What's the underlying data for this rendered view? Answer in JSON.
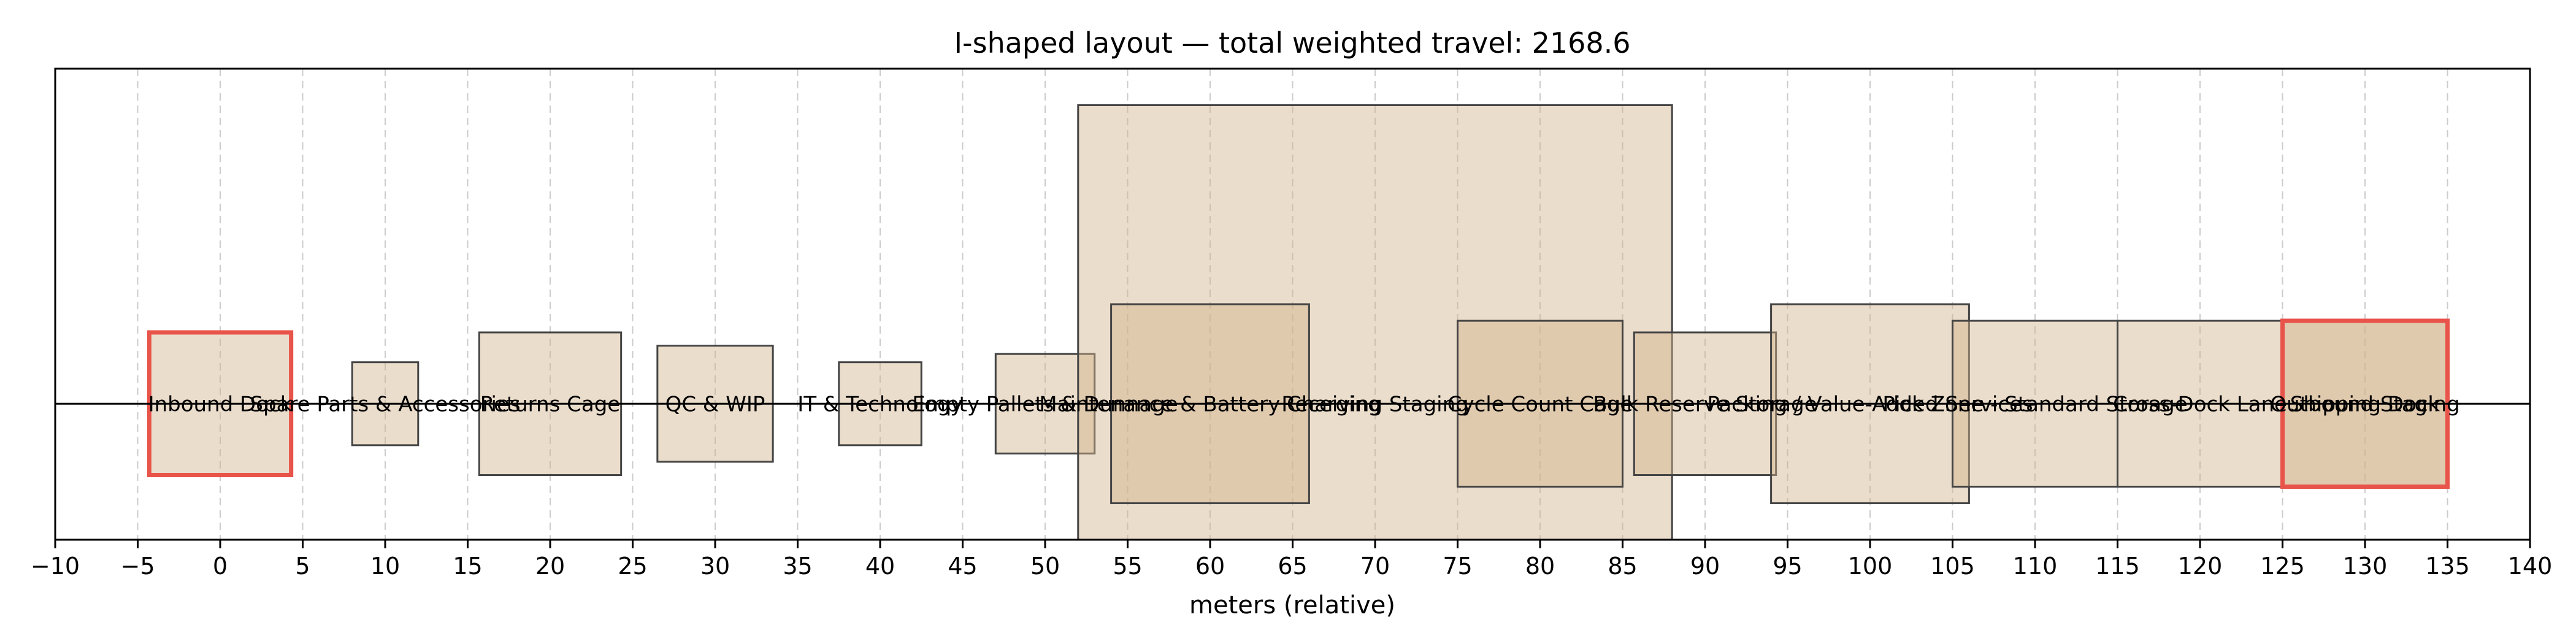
{
  "chart_data": {
    "type": "layout",
    "title": "I-shaped layout — total weighted travel: 2168.6",
    "xlabel": "meters (relative)",
    "xlim": [
      -10,
      140
    ],
    "ylim": [
      -8.2,
      20.2
    ],
    "xticks": [
      -10,
      -5,
      0,
      5,
      10,
      15,
      20,
      25,
      30,
      35,
      40,
      45,
      50,
      55,
      60,
      65,
      70,
      75,
      80,
      85,
      90,
      95,
      100,
      105,
      110,
      115,
      120,
      125,
      130,
      135,
      140
    ],
    "grid": "vertical-dashed",
    "centerline_y": 0,
    "colors": {
      "block_fill": "#d2b48c",
      "block_edge": "#444444",
      "highlight_edge": "#e8534a",
      "grid": "#cccccc"
    },
    "blocks": [
      {
        "label": "Inbound Dock",
        "x0": -4.3,
        "x1": 4.3,
        "y0": -4.3,
        "y1": 4.3,
        "highlight": true
      },
      {
        "label": "Spare Parts & Accessories",
        "x0": 8,
        "x1": 12,
        "y0": -2.5,
        "y1": 2.5,
        "highlight": false
      },
      {
        "label": "Returns Cage",
        "x0": 15.7,
        "x1": 24.3,
        "y0": -4.3,
        "y1": 4.3,
        "highlight": false
      },
      {
        "label": "QC & WIP",
        "x0": 26.5,
        "x1": 33.5,
        "y0": -3.5,
        "y1": 3.5,
        "highlight": false
      },
      {
        "label": "IT & Technology",
        "x0": 37.5,
        "x1": 42.5,
        "y0": -2.5,
        "y1": 2.5,
        "highlight": false
      },
      {
        "label": "Empty Pallets & Dunnage",
        "x0": 47,
        "x1": 53,
        "y0": -3,
        "y1": 3,
        "highlight": false
      },
      {
        "label": "Maintenance & Battery Charging",
        "x0": 52,
        "x1": 88,
        "y0": -8.2,
        "y1": 18,
        "highlight": false
      },
      {
        "label": "Receiving Staging",
        "x0": 54,
        "x1": 66,
        "y0": -6,
        "y1": 6,
        "highlight": false
      },
      {
        "label": "Cycle Count Cage",
        "x0": 75,
        "x1": 85,
        "y0": -5,
        "y1": 5,
        "highlight": false
      },
      {
        "label": "Bulk Reserve Storage",
        "x0": 85.7,
        "x1": 94.3,
        "y0": -4.3,
        "y1": 4.3,
        "highlight": false
      },
      {
        "label": "Packing / Value-Added Services",
        "x0": 94,
        "x1": 106,
        "y0": -6,
        "y1": 6,
        "highlight": false
      },
      {
        "label": "Pick Zone - Standard Storage",
        "x0": 105,
        "x1": 115,
        "y0": -5,
        "y1": 5,
        "highlight": false
      },
      {
        "label": "Cross-Dock Lane",
        "x0": 115,
        "x1": 125,
        "y0": -5,
        "y1": 5,
        "highlight": false
      },
      {
        "label": "Outbound Staging",
        "x0": 125,
        "x1": 135,
        "y0": -5,
        "y1": 5,
        "highlight": true
      },
      {
        "label": "Shipping Dock",
        "x0": 125,
        "x1": 135,
        "y0": -5,
        "y1": 5,
        "highlight": true
      }
    ],
    "label_positions_x": [
      0,
      10,
      20,
      30,
      40,
      50,
      60,
      70,
      80,
      90,
      100,
      110,
      120,
      130,
      130
    ]
  }
}
